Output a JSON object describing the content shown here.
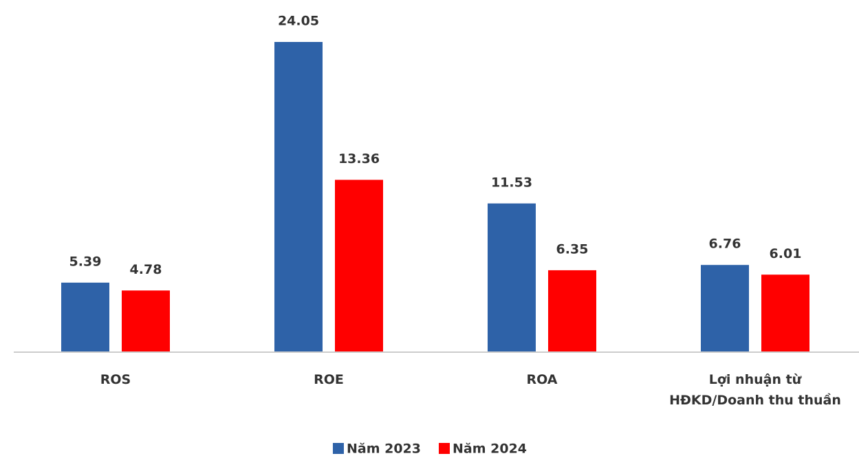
{
  "chart_data": {
    "type": "bar",
    "categories": [
      "ROS",
      "ROE",
      "ROA",
      "Lợi nhuận từ\nHĐKD/Doanh thu thuần"
    ],
    "series": [
      {
        "name": "Năm 2023",
        "color": "#2e62a8",
        "values": [
          5.39,
          24.05,
          11.53,
          6.76
        ]
      },
      {
        "name": "Năm 2024",
        "color": "#ff0000",
        "values": [
          4.78,
          13.36,
          6.35,
          6.01
        ]
      }
    ],
    "legend": "bottom"
  }
}
